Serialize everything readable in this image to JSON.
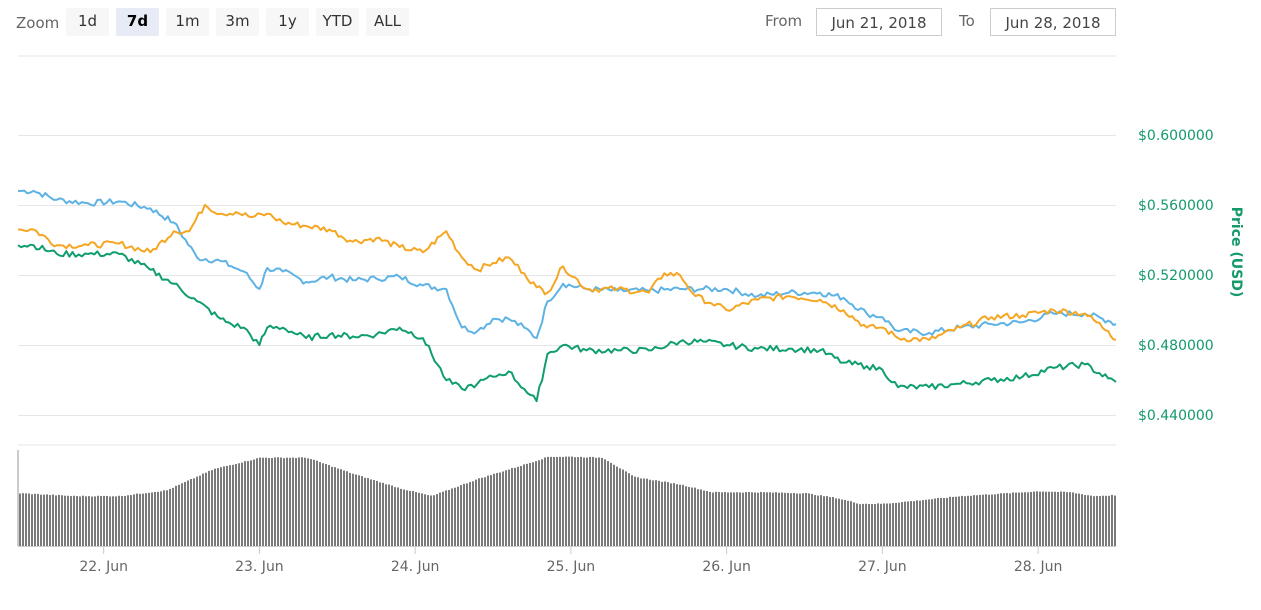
{
  "zoom": {
    "label": "Zoom",
    "buttons": [
      "1d",
      "7d",
      "1m",
      "3m",
      "1y",
      "YTD",
      "ALL"
    ],
    "active": "7d"
  },
  "range": {
    "from_label": "From",
    "from_value": "Jun 21, 2018",
    "to_label": "To",
    "to_value": "Jun 28, 2018"
  },
  "chart_data": {
    "type": "line",
    "ylabel": "Price (USD)",
    "y_tick_labels": [
      "$0.440000",
      "$0.480000",
      "$0.520000",
      "$0.560000",
      "$0.600000"
    ],
    "y_ticks": [
      0.44,
      0.48,
      0.52,
      0.56,
      0.6
    ],
    "ylim": [
      0.423,
      0.645
    ],
    "x_range_days": [
      21.45,
      28.5
    ],
    "x_tick_labels": [
      "22. Jun",
      "23. Jun",
      "24. Jun",
      "25. Jun",
      "26. Jun",
      "27. Jun",
      "28. Jun"
    ],
    "x_ticks": [
      22,
      23,
      24,
      25,
      26,
      27,
      28
    ],
    "grid": true,
    "colors": {
      "blue": "#5eb3e4",
      "orange": "#f5a623",
      "green": "#109e6e",
      "volume": "#7a7a7a"
    },
    "series": [
      {
        "color": "blue",
        "x": [
          21.45,
          21.55,
          21.7,
          21.9,
          22.1,
          22.3,
          22.45,
          22.6,
          22.75,
          22.82,
          22.9,
          23.0,
          23.05,
          23.15,
          23.3,
          23.45,
          23.6,
          23.75,
          23.9,
          24.05,
          24.2,
          24.3,
          24.4,
          24.5,
          24.6,
          24.7,
          24.78,
          24.85,
          24.95,
          25.1,
          25.3,
          25.5,
          25.7,
          25.85,
          26.0,
          26.2,
          26.4,
          26.6,
          26.75,
          26.9,
          27.0,
          27.1,
          27.3,
          27.5,
          27.7,
          27.9,
          28.1,
          28.3,
          28.45,
          28.5
        ],
        "values": [
          0.568,
          0.568,
          0.563,
          0.561,
          0.562,
          0.558,
          0.55,
          0.53,
          0.528,
          0.525,
          0.522,
          0.512,
          0.524,
          0.522,
          0.516,
          0.519,
          0.517,
          0.518,
          0.519,
          0.514,
          0.512,
          0.49,
          0.488,
          0.495,
          0.495,
          0.49,
          0.484,
          0.505,
          0.515,
          0.512,
          0.511,
          0.511,
          0.512,
          0.512,
          0.512,
          0.508,
          0.51,
          0.51,
          0.507,
          0.498,
          0.496,
          0.488,
          0.487,
          0.49,
          0.492,
          0.493,
          0.498,
          0.498,
          0.494,
          0.492
        ]
      },
      {
        "color": "orange",
        "x": [
          21.45,
          21.55,
          21.7,
          21.9,
          22.1,
          22.3,
          22.45,
          22.55,
          22.65,
          22.75,
          22.85,
          22.95,
          23.05,
          23.15,
          23.3,
          23.45,
          23.6,
          23.75,
          23.9,
          24.05,
          24.2,
          24.3,
          24.4,
          24.5,
          24.6,
          24.7,
          24.78,
          24.85,
          24.95,
          25.1,
          25.3,
          25.5,
          25.6,
          25.7,
          25.8,
          25.9,
          26.0,
          26.2,
          26.4,
          26.6,
          26.75,
          26.9,
          27.0,
          27.1,
          27.3,
          27.5,
          27.7,
          27.9,
          28.1,
          28.3,
          28.45,
          28.5
        ],
        "values": [
          0.546,
          0.546,
          0.537,
          0.537,
          0.538,
          0.533,
          0.545,
          0.545,
          0.56,
          0.555,
          0.556,
          0.553,
          0.555,
          0.55,
          0.548,
          0.546,
          0.539,
          0.541,
          0.536,
          0.533,
          0.545,
          0.53,
          0.523,
          0.527,
          0.53,
          0.521,
          0.513,
          0.51,
          0.525,
          0.512,
          0.512,
          0.51,
          0.521,
          0.52,
          0.508,
          0.504,
          0.5,
          0.506,
          0.508,
          0.506,
          0.5,
          0.49,
          0.49,
          0.484,
          0.483,
          0.49,
          0.496,
          0.497,
          0.5,
          0.498,
          0.488,
          0.483
        ]
      },
      {
        "color": "green",
        "x": [
          21.45,
          21.55,
          21.7,
          21.9,
          22.1,
          22.3,
          22.45,
          22.6,
          22.75,
          22.82,
          22.9,
          23.0,
          23.05,
          23.15,
          23.3,
          23.45,
          23.6,
          23.75,
          23.9,
          24.05,
          24.2,
          24.3,
          24.4,
          24.5,
          24.6,
          24.7,
          24.78,
          24.85,
          24.95,
          25.1,
          25.3,
          25.5,
          25.7,
          25.85,
          26.0,
          26.2,
          26.4,
          26.6,
          26.75,
          26.9,
          27.0,
          27.1,
          27.3,
          27.5,
          27.7,
          27.9,
          28.1,
          28.3,
          28.45,
          28.5
        ],
        "values": [
          0.537,
          0.537,
          0.532,
          0.532,
          0.532,
          0.523,
          0.515,
          0.505,
          0.495,
          0.492,
          0.49,
          0.48,
          0.49,
          0.49,
          0.484,
          0.486,
          0.485,
          0.486,
          0.49,
          0.484,
          0.46,
          0.455,
          0.458,
          0.462,
          0.465,
          0.455,
          0.448,
          0.475,
          0.48,
          0.477,
          0.477,
          0.477,
          0.482,
          0.482,
          0.48,
          0.478,
          0.478,
          0.477,
          0.47,
          0.468,
          0.466,
          0.456,
          0.456,
          0.458,
          0.46,
          0.462,
          0.467,
          0.469,
          0.461,
          0.459
        ]
      }
    ],
    "volume": {
      "x": [
        21.45,
        21.8,
        22.1,
        22.4,
        22.7,
        23.0,
        23.3,
        23.6,
        23.9,
        24.1,
        24.4,
        24.7,
        24.85,
        25.0,
        25.2,
        25.4,
        25.7,
        25.9,
        26.2,
        26.5,
        26.7,
        26.85,
        27.0,
        27.2,
        27.5,
        27.8,
        28.0,
        28.2,
        28.35,
        28.5
      ],
      "relative_values": [
        0.55,
        0.52,
        0.52,
        0.58,
        0.8,
        0.92,
        0.92,
        0.75,
        0.6,
        0.52,
        0.7,
        0.85,
        0.93,
        0.93,
        0.92,
        0.72,
        0.64,
        0.56,
        0.56,
        0.55,
        0.5,
        0.44,
        0.44,
        0.47,
        0.52,
        0.55,
        0.57,
        0.56,
        0.52,
        0.53
      ]
    }
  }
}
